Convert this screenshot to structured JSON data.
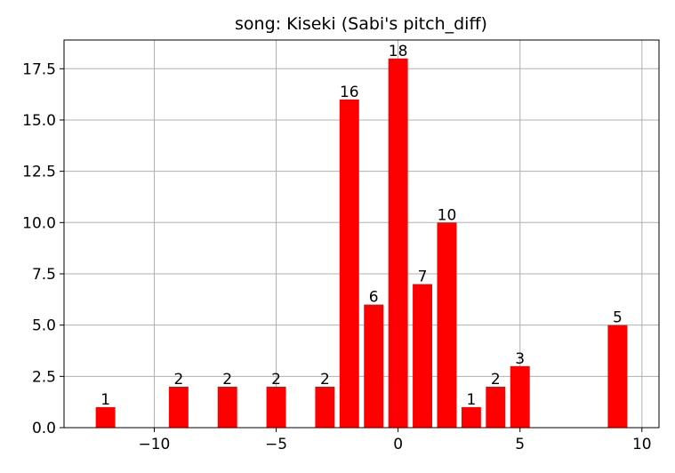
{
  "chart_data": {
    "type": "bar",
    "title": "song: Kiseki (Sabi's pitch_diff)",
    "xlabel": "",
    "ylabel": "",
    "xlim": [
      -13.7,
      10.7
    ],
    "ylim": [
      0,
      18.9
    ],
    "xticks": [
      -10,
      -5,
      0,
      5,
      10
    ],
    "xtick_labels": [
      "−10",
      "−5",
      "0",
      "5",
      "10"
    ],
    "yticks": [
      0,
      2.5,
      5,
      7.5,
      10,
      12.5,
      15,
      17.5
    ],
    "ytick_labels": [
      "0.0",
      "2.5",
      "5.0",
      "7.5",
      "10.0",
      "12.5",
      "15.0",
      "17.5"
    ],
    "grid": true,
    "bar_color": "#ff0000",
    "bar_width": 0.8,
    "x": [
      -12,
      -9,
      -7,
      -5,
      -3,
      -2,
      -1,
      0,
      1,
      2,
      3,
      4,
      5,
      9
    ],
    "values": [
      1,
      2,
      2,
      2,
      2,
      16,
      6,
      18,
      7,
      10,
      1,
      2,
      3,
      5
    ],
    "data_labels": [
      "1",
      "2",
      "2",
      "2",
      "2",
      "16",
      "6",
      "18",
      "7",
      "10",
      "1",
      "2",
      "3",
      "5"
    ]
  }
}
